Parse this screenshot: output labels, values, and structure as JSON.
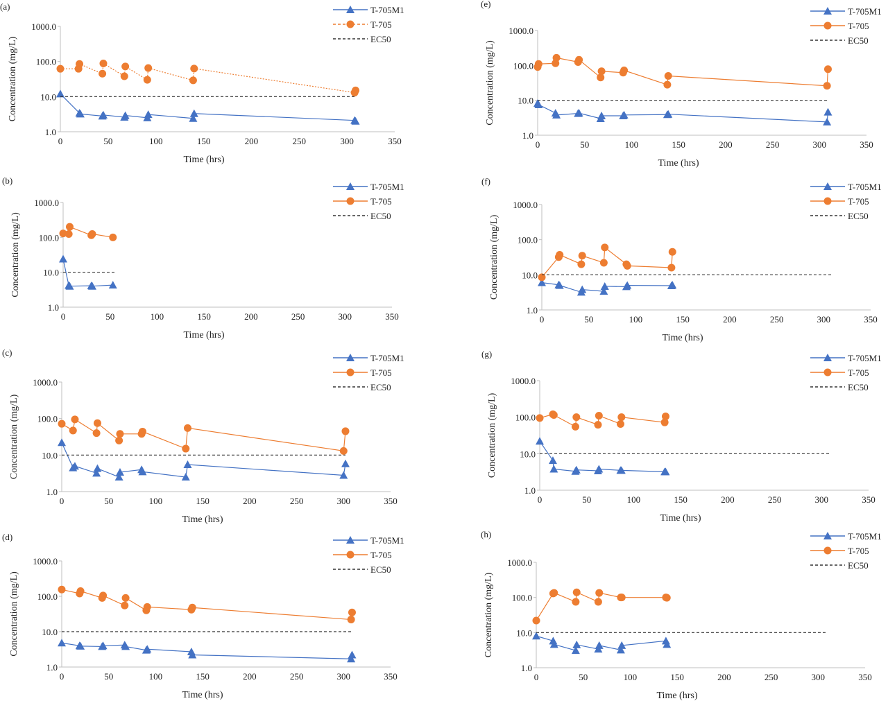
{
  "colors": {
    "m1": "#4472c4",
    "t705": "#ed7d31",
    "ec50": "#333333",
    "axis": "#bfbfbf"
  },
  "chart_data": [
    {
      "panel_label": "(a)",
      "type": "line",
      "xlabel": "Time (hrs)",
      "ylabel": "Concentration (mg/L)",
      "xlim": [
        0,
        350
      ],
      "ylim": [
        1,
        1000
      ],
      "yscale": "log",
      "xticks": [
        "0",
        "50",
        "100",
        "150",
        "200",
        "250",
        "300",
        "350"
      ],
      "yticks": [
        "1.0",
        "10.0",
        "100.0",
        "1000.0"
      ],
      "legend_position": "top-right",
      "series": [
        {
          "name": "T-705M1",
          "marker": "triangle",
          "line": "solid",
          "x": [
            0,
            20,
            21,
            44,
            45,
            67,
            68,
            91,
            92,
            139,
            140,
            308,
            309
          ],
          "y": [
            12,
            3.4,
            3.2,
            2.8,
            3.0,
            2.6,
            2.9,
            2.5,
            3.1,
            2.4,
            3.3,
            2.1,
            2.0
          ]
        },
        {
          "name": "T-705",
          "marker": "circle",
          "line": "dotted",
          "x": [
            0,
            19,
            20,
            44,
            45,
            67,
            68,
            91,
            92,
            139,
            140,
            308,
            309
          ],
          "y": [
            62,
            62,
            85,
            45,
            88,
            38,
            72,
            30,
            65,
            29,
            63,
            13,
            15
          ]
        },
        {
          "name": "EC50",
          "marker": "none",
          "line": "dashed",
          "x": [
            0,
            309
          ],
          "y": [
            10,
            10
          ]
        }
      ]
    },
    {
      "panel_label": "(b)",
      "type": "line",
      "xlabel": "Time (hrs)",
      "ylabel": "Concentration (mg/L)",
      "xlim": [
        0,
        350
      ],
      "ylim": [
        1,
        1000
      ],
      "yscale": "log",
      "xticks": [
        "0",
        "50",
        "100",
        "150",
        "200",
        "250",
        "300",
        "350"
      ],
      "yticks": [
        "1.0",
        "10.0",
        "100.0",
        "1000.0"
      ],
      "legend_position": "top-right",
      "series": [
        {
          "name": "T-705M1",
          "marker": "triangle",
          "line": "solid",
          "x": [
            0,
            6,
            7,
            30,
            31,
            53
          ],
          "y": [
            24,
            4.2,
            4.0,
            4.1,
            4.0,
            4.3
          ]
        },
        {
          "name": "T-705",
          "marker": "circle",
          "line": "solid",
          "x": [
            0,
            6,
            7,
            30,
            31,
            53
          ],
          "y": [
            130,
            125,
            200,
            115,
            125,
            100
          ]
        },
        {
          "name": "EC50",
          "marker": "none",
          "line": "dashed",
          "x": [
            0,
            56
          ],
          "y": [
            10,
            10
          ]
        }
      ]
    },
    {
      "panel_label": "(c)",
      "type": "line",
      "xlabel": "Time (hrs)",
      "ylabel": "Concentration (mg/L)",
      "xlim": [
        0,
        350
      ],
      "ylim": [
        1,
        1000
      ],
      "yscale": "log",
      "xticks": [
        "0",
        "50",
        "100",
        "150",
        "200",
        "250",
        "300",
        "350"
      ],
      "yticks": [
        "1.0",
        "10.0",
        "100.0",
        "1000.0"
      ],
      "legend_position": "top-right",
      "series": [
        {
          "name": "T-705M1",
          "marker": "triangle",
          "line": "solid",
          "x": [
            0,
            12,
            14,
            37,
            38,
            61,
            62,
            85,
            86,
            132,
            134,
            300,
            302
          ],
          "y": [
            22,
            4.5,
            5.0,
            3.2,
            4.3,
            2.5,
            3.4,
            4.0,
            3.5,
            2.5,
            5.5,
            2.8,
            5.8
          ]
        },
        {
          "name": "T-705",
          "marker": "circle",
          "line": "solid",
          "x": [
            0,
            12,
            14,
            37,
            38,
            61,
            62,
            85,
            86,
            132,
            134,
            300,
            302
          ],
          "y": [
            72,
            47,
            95,
            40,
            75,
            25,
            38,
            38,
            44,
            15,
            55,
            13,
            45
          ]
        },
        {
          "name": "EC50",
          "marker": "none",
          "line": "dashed",
          "x": [
            0,
            302
          ],
          "y": [
            10,
            10
          ]
        }
      ]
    },
    {
      "panel_label": "(d)",
      "type": "line",
      "xlabel": "Time (hrs)",
      "ylabel": "Concentration (mg/L)",
      "xlim": [
        0,
        350
      ],
      "ylim": [
        1,
        1000
      ],
      "yscale": "log",
      "xticks": [
        "0",
        "50",
        "100",
        "150",
        "200",
        "250",
        "300",
        "350"
      ],
      "yticks": [
        "1.0",
        "10.0",
        "100.0",
        "1000.0"
      ],
      "legend_position": "top-right",
      "series": [
        {
          "name": "T-705M1",
          "marker": "triangle",
          "line": "solid",
          "x": [
            0,
            19,
            20,
            43,
            44,
            67,
            68,
            90,
            91,
            138,
            139,
            308,
            309
          ],
          "y": [
            4.8,
            4.0,
            3.9,
            3.8,
            4.0,
            4.2,
            3.8,
            3.0,
            3.2,
            2.7,
            2.2,
            1.7,
            2.2
          ]
        },
        {
          "name": "T-705",
          "marker": "circle",
          "line": "solid",
          "x": [
            0,
            19,
            20,
            43,
            44,
            67,
            68,
            90,
            91,
            138,
            139,
            308,
            309
          ],
          "y": [
            155,
            120,
            140,
            90,
            105,
            55,
            90,
            40,
            50,
            42,
            48,
            22,
            35
          ]
        },
        {
          "name": "EC50",
          "marker": "none",
          "line": "dashed",
          "x": [
            0,
            309
          ],
          "y": [
            10,
            10
          ]
        }
      ]
    },
    {
      "panel_label": "(e)",
      "type": "line",
      "xlabel": "Time (hrs)",
      "ylabel": "Concentration (mg/L)",
      "xlim": [
        0,
        350
      ],
      "ylim": [
        1,
        1000
      ],
      "yscale": "log",
      "xticks": [
        "0",
        "50",
        "100",
        "150",
        "200",
        "250",
        "300",
        "350"
      ],
      "yticks": [
        "1.0",
        "10.0",
        "100.0",
        "1000.0"
      ],
      "legend_position": "top-right",
      "series": [
        {
          "name": "T-705M1",
          "marker": "triangle",
          "line": "solid",
          "x": [
            0,
            1,
            19,
            20,
            43,
            44,
            67,
            68,
            91,
            92,
            138,
            139,
            308,
            309
          ],
          "y": [
            8.2,
            7.5,
            4.3,
            3.8,
            4.2,
            4.3,
            3.0,
            3.6,
            3.6,
            3.8,
            3.9,
            4.0,
            2.4,
            4.6
          ]
        },
        {
          "name": "T-705",
          "marker": "circle",
          "line": "solid",
          "x": [
            0,
            1,
            19,
            20,
            43,
            44,
            67,
            68,
            91,
            92,
            138,
            139,
            308,
            309
          ],
          "y": [
            90,
            110,
            115,
            165,
            125,
            145,
            45,
            68,
            62,
            72,
            28,
            50,
            26,
            78
          ]
        },
        {
          "name": "EC50",
          "marker": "none",
          "line": "dashed",
          "x": [
            0,
            310
          ],
          "y": [
            10,
            10
          ]
        }
      ]
    },
    {
      "panel_label": "(f)",
      "type": "line",
      "xlabel": "Time (hrs)",
      "ylabel": "Concentration (mg/L)",
      "xlim": [
        0,
        350
      ],
      "ylim": [
        1,
        1000
      ],
      "yscale": "log",
      "xticks": [
        "0",
        "50",
        "100",
        "150",
        "200",
        "250",
        "300",
        "350"
      ],
      "yticks": [
        "1.0",
        "10.0",
        "100.0",
        "1000.0"
      ],
      "legend_position": "top-right",
      "series": [
        {
          "name": "T-705M1",
          "marker": "triangle",
          "line": "solid",
          "x": [
            0,
            18,
            19,
            42,
            43,
            66,
            67,
            90,
            91,
            138,
            139
          ],
          "y": [
            6.0,
            5.2,
            5.0,
            3.2,
            3.8,
            3.4,
            4.7,
            4.6,
            5.0,
            4.9,
            5.1
          ]
        },
        {
          "name": "T-705",
          "marker": "circle",
          "line": "solid",
          "x": [
            0,
            18,
            19,
            42,
            43,
            66,
            67,
            90,
            91,
            138,
            139
          ],
          "y": [
            8.5,
            32,
            37,
            20,
            35,
            22,
            60,
            20,
            18,
            16,
            45
          ]
        },
        {
          "name": "EC50",
          "marker": "none",
          "line": "dashed",
          "x": [
            0,
            308
          ],
          "y": [
            10,
            10
          ]
        }
      ]
    },
    {
      "panel_label": "(g)",
      "type": "line",
      "xlabel": "Time (hrs)",
      "ylabel": "Concentration (mg/L)",
      "xlim": [
        0,
        350
      ],
      "ylim": [
        1,
        1000
      ],
      "yscale": "log",
      "xticks": [
        "0",
        "50",
        "100",
        "150",
        "200",
        "250",
        "300",
        "350"
      ],
      "yticks": [
        "1.0",
        "10.0",
        "100.0",
        "1000.0"
      ],
      "legend_position": "top-right",
      "series": [
        {
          "name": "T-705M1",
          "marker": "triangle",
          "line": "solid",
          "x": [
            0,
            14,
            15,
            38,
            39,
            62,
            63,
            86,
            87,
            133,
            134
          ],
          "y": [
            22,
            6.5,
            3.8,
            3.3,
            3.6,
            3.4,
            3.8,
            3.5,
            3.5,
            3.2,
            3.2
          ]
        },
        {
          "name": "T-705",
          "marker": "circle",
          "line": "solid",
          "x": [
            0,
            14,
            15,
            38,
            39,
            62,
            63,
            86,
            87,
            133,
            134
          ],
          "y": [
            95,
            120,
            115,
            55,
            100,
            62,
            110,
            65,
            100,
            72,
            105
          ]
        },
        {
          "name": "EC50",
          "marker": "none",
          "line": "dashed",
          "x": [
            0,
            308
          ],
          "y": [
            10,
            10
          ]
        }
      ]
    },
    {
      "panel_label": "(h)",
      "type": "line",
      "xlabel": "Time (hrs)",
      "ylabel": "Concentration (mg/L)",
      "xlim": [
        0,
        350
      ],
      "ylim": [
        1,
        1000
      ],
      "yscale": "log",
      "xticks": [
        "0",
        "50",
        "100",
        "150",
        "200",
        "250",
        "300",
        "350"
      ],
      "yticks": [
        "1.0",
        "10.0",
        "100.0",
        "1000.0"
      ],
      "legend_position": "top-right",
      "series": [
        {
          "name": "T-705M1",
          "marker": "triangle",
          "line": "solid",
          "x": [
            0,
            18,
            19,
            42,
            43,
            66,
            67,
            90,
            91,
            138,
            139
          ],
          "y": [
            8.0,
            5.8,
            4.6,
            3.1,
            4.5,
            3.4,
            4.3,
            3.2,
            4.3,
            5.8,
            4.6
          ]
        },
        {
          "name": "T-705",
          "marker": "circle",
          "line": "solid",
          "x": [
            0,
            18,
            19,
            42,
            43,
            66,
            67,
            90,
            91,
            138,
            139
          ],
          "y": [
            22,
            130,
            135,
            75,
            140,
            75,
            135,
            100,
            100,
            100,
            98
          ]
        },
        {
          "name": "EC50",
          "marker": "none",
          "line": "dashed",
          "x": [
            0,
            308
          ],
          "y": [
            10,
            10
          ]
        }
      ]
    }
  ]
}
